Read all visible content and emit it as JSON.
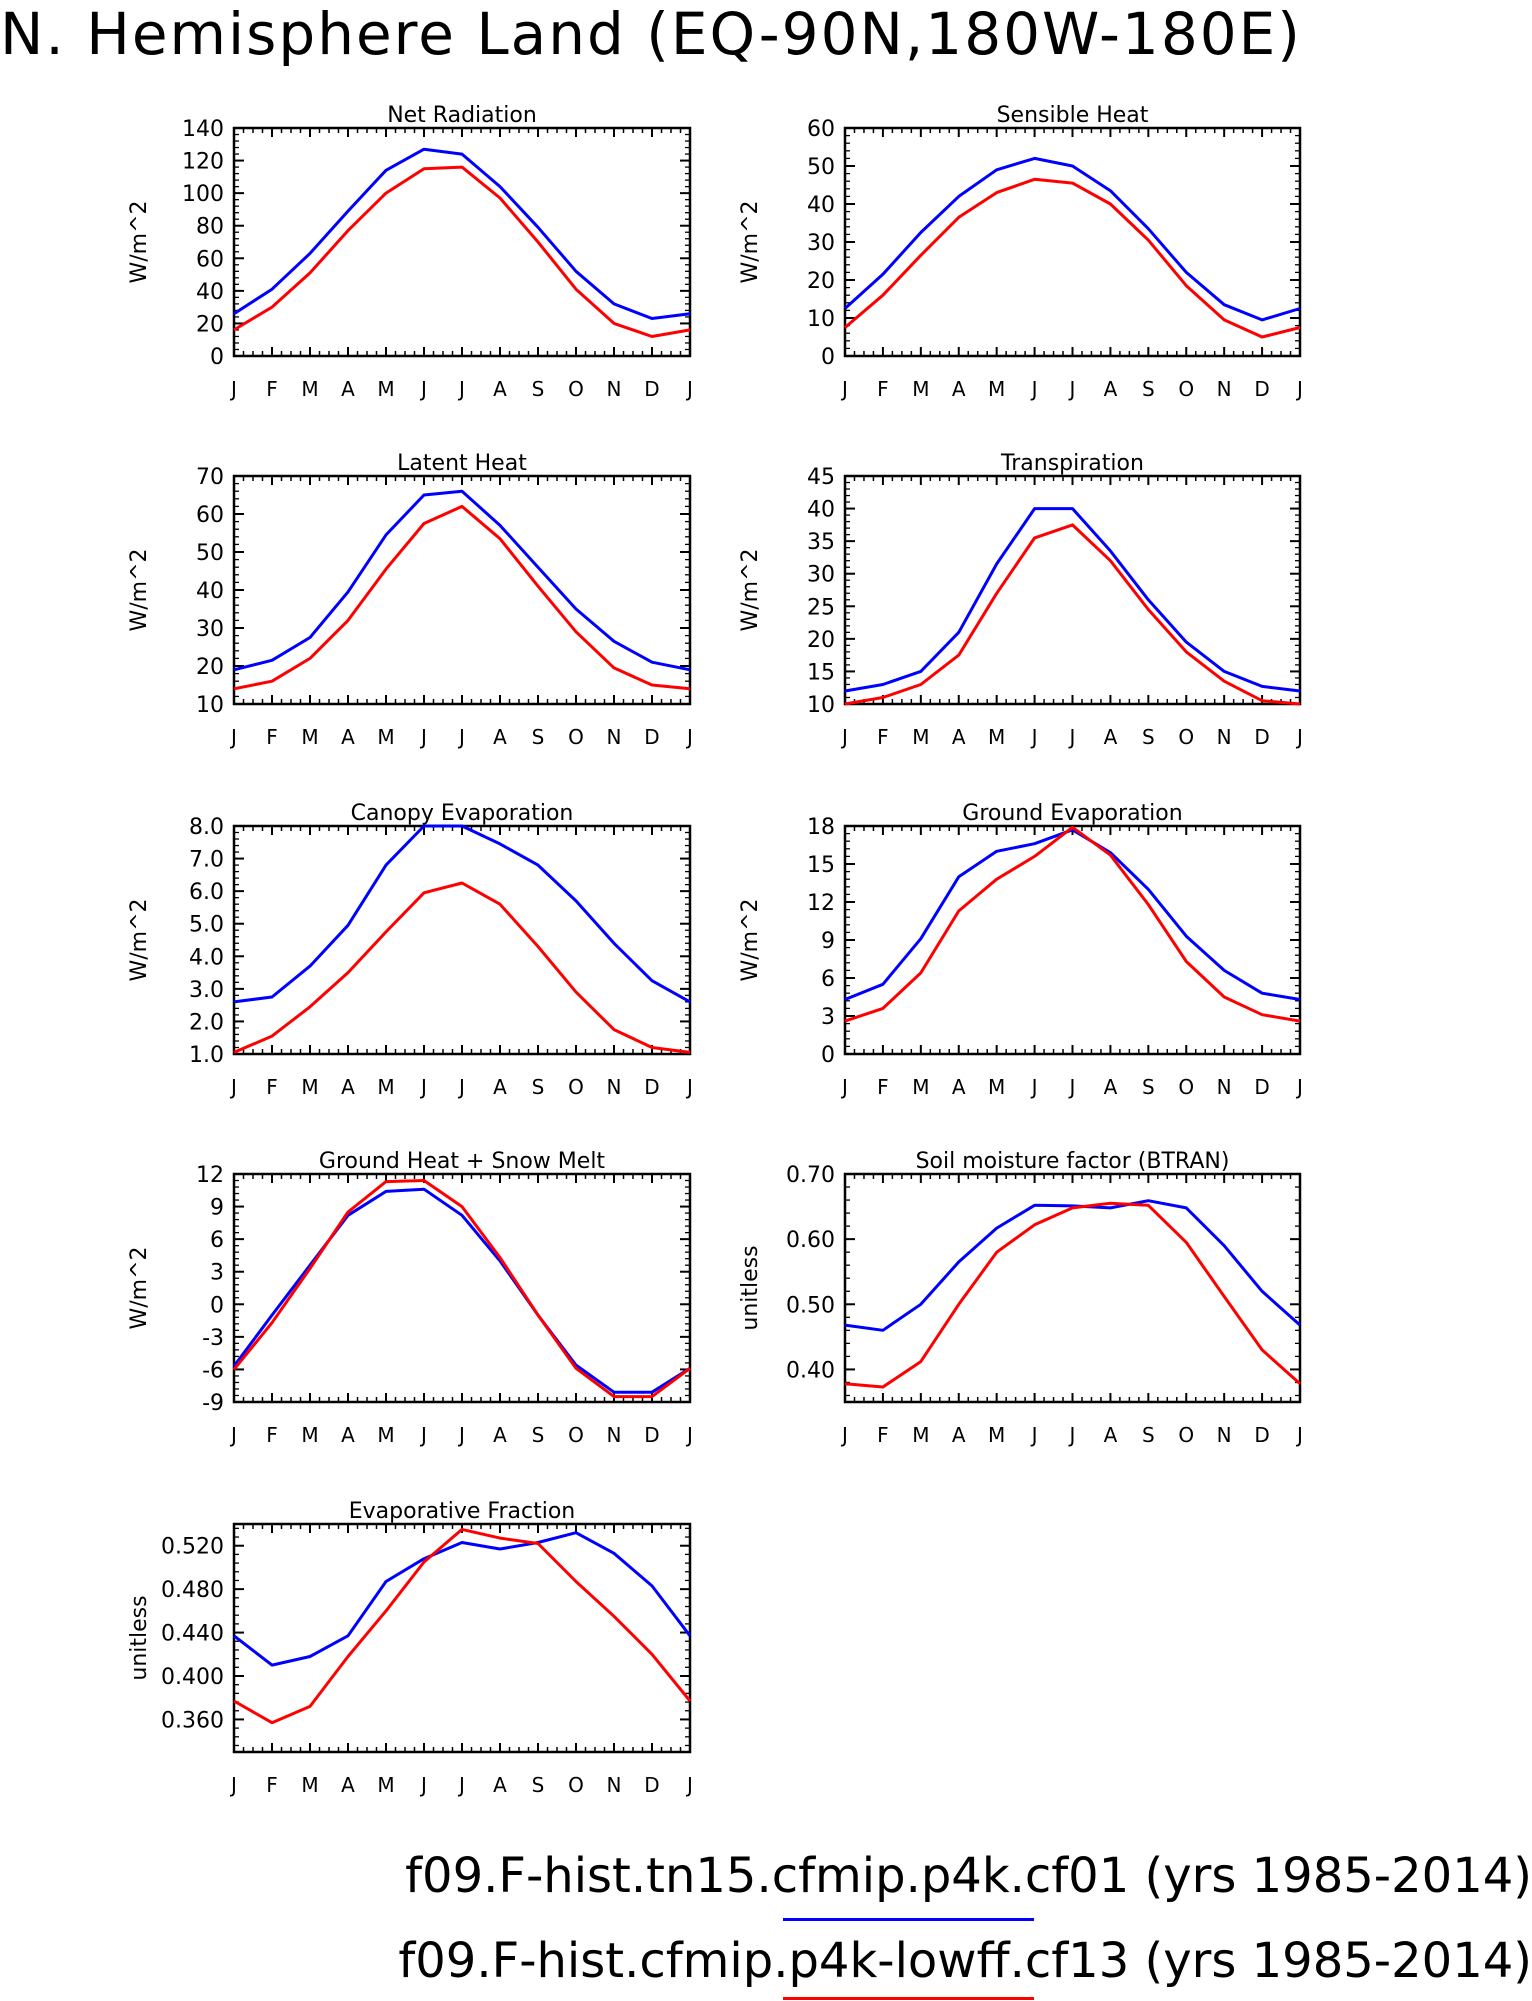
{
  "title": "N. Hemisphere Land (EQ-90N,180W-180E)",
  "months": [
    "J",
    "F",
    "M",
    "A",
    "M",
    "J",
    "J",
    "A",
    "S",
    "O",
    "N",
    "D",
    "J"
  ],
  "colors": {
    "case1": "#0000ff",
    "case2": "#ff0000"
  },
  "legend": [
    {
      "label": "f09.F-hist.tn15.cfmip.p4k.cf01 (yrs 1985-2014)",
      "color": "#0000ff"
    },
    {
      "label": "f09.F-hist.cfmip.p4k-lowff.cf13 (yrs 1985-2014)",
      "color": "#ff0000"
    }
  ],
  "chart_data": [
    {
      "type": "line",
      "title": "Net Radiation",
      "ylabel": "W/m^2",
      "ylim": [
        0,
        140
      ],
      "yticks": [
        0,
        20,
        40,
        60,
        80,
        100,
        120,
        140
      ],
      "yticklabels": [
        "0",
        "20",
        "40",
        "60",
        "80",
        "100",
        "120",
        "140"
      ],
      "series": [
        {
          "name": "f09.F-hist.tn15.cfmip.p4k.cf01",
          "color": "#0000ff",
          "values": [
            26,
            41,
            63,
            89,
            114,
            127,
            124,
            104,
            79,
            52,
            32,
            23,
            26
          ]
        },
        {
          "name": "f09.F-hist.cfmip.p4k-lowff.cf13",
          "color": "#ff0000",
          "values": [
            16,
            30,
            51,
            77,
            100,
            115,
            116,
            97,
            70,
            41,
            20,
            12,
            16
          ]
        }
      ]
    },
    {
      "type": "line",
      "title": "Sensible Heat",
      "ylabel": "W/m^2",
      "ylim": [
        0,
        60
      ],
      "yticks": [
        0,
        10,
        20,
        30,
        40,
        50,
        60
      ],
      "yticklabels": [
        "0",
        "10",
        "20",
        "30",
        "40",
        "50",
        "60"
      ],
      "series": [
        {
          "name": "f09.F-hist.tn15.cfmip.p4k.cf01",
          "color": "#0000ff",
          "values": [
            12.5,
            21.5,
            32.5,
            42,
            49,
            52,
            50,
            43.5,
            33.5,
            22,
            13.5,
            9.5,
            12.5
          ]
        },
        {
          "name": "f09.F-hist.cfmip.p4k-lowff.cf13",
          "color": "#ff0000",
          "values": [
            7.5,
            16,
            26.5,
            36.5,
            43,
            46.5,
            45.5,
            40,
            30.5,
            18.5,
            9.5,
            5,
            7.5
          ]
        }
      ]
    },
    {
      "type": "line",
      "title": "Latent Heat",
      "ylabel": "W/m^2",
      "ylim": [
        10,
        70
      ],
      "yticks": [
        10,
        20,
        30,
        40,
        50,
        60,
        70
      ],
      "yticklabels": [
        "10",
        "20",
        "30",
        "40",
        "50",
        "60",
        "70"
      ],
      "series": [
        {
          "name": "f09.F-hist.tn15.cfmip.p4k.cf01",
          "color": "#0000ff",
          "values": [
            19,
            21.5,
            27.5,
            39.5,
            54.5,
            65,
            66,
            57,
            46,
            35,
            26.5,
            21,
            19
          ]
        },
        {
          "name": "f09.F-hist.cfmip.p4k-lowff.cf13",
          "color": "#ff0000",
          "values": [
            14,
            16,
            22,
            32,
            45.5,
            57.5,
            62,
            53.5,
            41,
            29,
            19.5,
            15,
            14
          ]
        }
      ]
    },
    {
      "type": "line",
      "title": "Transpiration",
      "ylabel": "W/m^2",
      "ylim": [
        10,
        45
      ],
      "yticks": [
        10,
        15,
        20,
        25,
        30,
        35,
        40,
        45
      ],
      "yticklabels": [
        "10",
        "15",
        "20",
        "25",
        "30",
        "35",
        "40",
        "45"
      ],
      "series": [
        {
          "name": "f09.F-hist.tn15.cfmip.p4k.cf01",
          "color": "#0000ff",
          "values": [
            12,
            13,
            15,
            21,
            31.5,
            40,
            40,
            33.5,
            26,
            19.5,
            15,
            12.7,
            12
          ]
        },
        {
          "name": "f09.F-hist.cfmip.p4k-lowff.cf13",
          "color": "#ff0000",
          "values": [
            10,
            11,
            13,
            17.5,
            27,
            35.5,
            37.5,
            32,
            24.5,
            18,
            13.5,
            10.5,
            10
          ]
        }
      ]
    },
    {
      "type": "line",
      "title": "Canopy Evaporation",
      "ylabel": "W/m^2",
      "ylim": [
        1,
        8
      ],
      "yticks": [
        1,
        2,
        3,
        4,
        5,
        6,
        7,
        8
      ],
      "yticklabels": [
        "1.0",
        "2.0",
        "3.0",
        "4.0",
        "5.0",
        "6.0",
        "7.0",
        "8.0"
      ],
      "series": [
        {
          "name": "f09.F-hist.tn15.cfmip.p4k.cf01",
          "color": "#0000ff",
          "values": [
            2.6,
            2.75,
            3.7,
            4.95,
            6.8,
            8,
            8,
            7.45,
            6.8,
            5.7,
            4.4,
            3.25,
            2.6
          ]
        },
        {
          "name": "f09.F-hist.cfmip.p4k-lowff.cf13",
          "color": "#ff0000",
          "values": [
            1.05,
            1.55,
            2.45,
            3.5,
            4.75,
            5.95,
            6.25,
            5.6,
            4.3,
            2.9,
            1.75,
            1.2,
            1.05
          ]
        }
      ]
    },
    {
      "type": "line",
      "title": "Ground Evaporation",
      "ylabel": "W/m^2",
      "ylim": [
        0,
        18
      ],
      "yticks": [
        0,
        3,
        6,
        9,
        12,
        15,
        18
      ],
      "yticklabels": [
        "0",
        "3",
        "6",
        "9",
        "12",
        "15",
        "18"
      ],
      "series": [
        {
          "name": "f09.F-hist.tn15.cfmip.p4k.cf01",
          "color": "#0000ff",
          "values": [
            4.3,
            5.5,
            9.1,
            14,
            16,
            16.6,
            17.7,
            15.9,
            13,
            9.3,
            6.6,
            4.8,
            4.3
          ]
        },
        {
          "name": "f09.F-hist.cfmip.p4k-lowff.cf13",
          "color": "#ff0000",
          "values": [
            2.6,
            3.6,
            6.4,
            11.3,
            13.8,
            15.6,
            17.9,
            15.7,
            11.8,
            7.3,
            4.5,
            3.1,
            2.6
          ]
        }
      ]
    },
    {
      "type": "line",
      "title": "Ground Heat + Snow Melt",
      "ylabel": "W/m^2",
      "ylim": [
        -9,
        12
      ],
      "yticks": [
        -9,
        -6,
        -3,
        0,
        3,
        6,
        9,
        12
      ],
      "yticklabels": [
        "-9",
        "-6",
        "-3",
        "0",
        "3",
        "6",
        "9",
        "12"
      ],
      "series": [
        {
          "name": "f09.F-hist.tn15.cfmip.p4k.cf01",
          "color": "#0000ff",
          "values": [
            -5.7,
            -1,
            3.6,
            8.2,
            10.4,
            10.6,
            8.2,
            4,
            -1,
            -5.6,
            -8.1,
            -8.1,
            -5.9
          ]
        },
        {
          "name": "f09.F-hist.cfmip.p4k-lowff.cf13",
          "color": "#ff0000",
          "values": [
            -6,
            -1.7,
            3.3,
            8.5,
            11.3,
            11.4,
            9,
            4.3,
            -1,
            -5.9,
            -8.5,
            -8.5,
            -5.9
          ]
        }
      ]
    },
    {
      "type": "line",
      "title": "Soil moisture factor (BTRAN)",
      "ylabel": "unitless",
      "ylim": [
        0.35,
        0.7
      ],
      "yticks": [
        0.4,
        0.5,
        0.6,
        0.7
      ],
      "yticklabels": [
        "0.40",
        "0.50",
        "0.60",
        "0.70"
      ],
      "series": [
        {
          "name": "f09.F-hist.tn15.cfmip.p4k.cf01",
          "color": "#0000ff",
          "values": [
            0.468,
            0.46,
            0.5,
            0.565,
            0.617,
            0.652,
            0.651,
            0.648,
            0.659,
            0.648,
            0.59,
            0.52,
            0.468
          ]
        },
        {
          "name": "f09.F-hist.cfmip.p4k-lowff.cf13",
          "color": "#ff0000",
          "values": [
            0.378,
            0.373,
            0.412,
            0.5,
            0.58,
            0.622,
            0.648,
            0.655,
            0.652,
            0.595,
            0.512,
            0.43,
            0.378
          ]
        }
      ]
    },
    {
      "type": "line",
      "title": "Evaporative Fraction",
      "ylabel": "unitless",
      "ylim": [
        0.33,
        0.54
      ],
      "yticks": [
        0.36,
        0.4,
        0.44,
        0.48,
        0.52
      ],
      "yticklabels": [
        "0.360",
        "0.400",
        "0.440",
        "0.480",
        "0.520"
      ],
      "series": [
        {
          "name": "f09.F-hist.tn15.cfmip.p4k.cf01",
          "color": "#0000ff",
          "values": [
            0.437,
            0.41,
            0.418,
            0.437,
            0.487,
            0.508,
            0.523,
            0.517,
            0.523,
            0.532,
            0.513,
            0.483,
            0.437
          ]
        },
        {
          "name": "f09.F-hist.cfmip.p4k-lowff.cf13",
          "color": "#ff0000",
          "values": [
            0.377,
            0.357,
            0.372,
            0.418,
            0.46,
            0.505,
            0.535,
            0.527,
            0.522,
            0.487,
            0.455,
            0.42,
            0.377
          ]
        }
      ]
    }
  ]
}
